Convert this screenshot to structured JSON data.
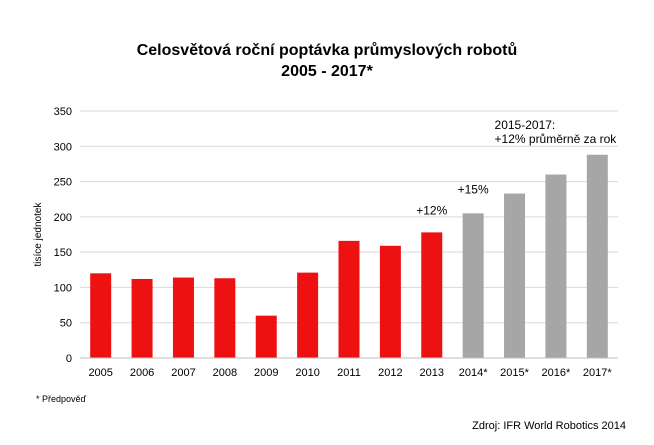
{
  "chart_data": {
    "type": "bar",
    "title": "Celosvětová roční poptávka průmyslových robotů",
    "subtitle": "2005 - 2017*",
    "ylabel": "tisíce jednotek",
    "xlabel": "",
    "ylim": [
      0,
      350
    ],
    "yticks": [
      "0",
      "50",
      "100",
      "150",
      "200",
      "250",
      "300",
      "350"
    ],
    "categories": [
      "2005",
      "2006",
      "2007",
      "2008",
      "2009",
      "2010",
      "2011",
      "2012",
      "2013",
      "2014*",
      "2015*",
      "2016*",
      "2017*"
    ],
    "values": [
      120,
      112,
      114,
      113,
      60,
      121,
      166,
      159,
      178,
      205,
      233,
      260,
      288
    ],
    "bar_colors": [
      "#ee1111",
      "#ee1111",
      "#ee1111",
      "#ee1111",
      "#ee1111",
      "#ee1111",
      "#ee1111",
      "#ee1111",
      "#ee1111",
      "#a6a6a6",
      "#a6a6a6",
      "#a6a6a6",
      "#a6a6a6"
    ],
    "grid": true,
    "gridline_color": "#d9d9d9",
    "annotations": [
      {
        "text": "+12%",
        "category": "2013"
      },
      {
        "text": "+15%",
        "category": "2014*"
      },
      {
        "text": "2015-2017:",
        "category": "2015*"
      },
      {
        "text": "+12% průměrně za rok",
        "category": "2015*"
      }
    ],
    "footnote": "* Předpověď",
    "source": "Zdroj: IFR World Robotics 2014"
  }
}
